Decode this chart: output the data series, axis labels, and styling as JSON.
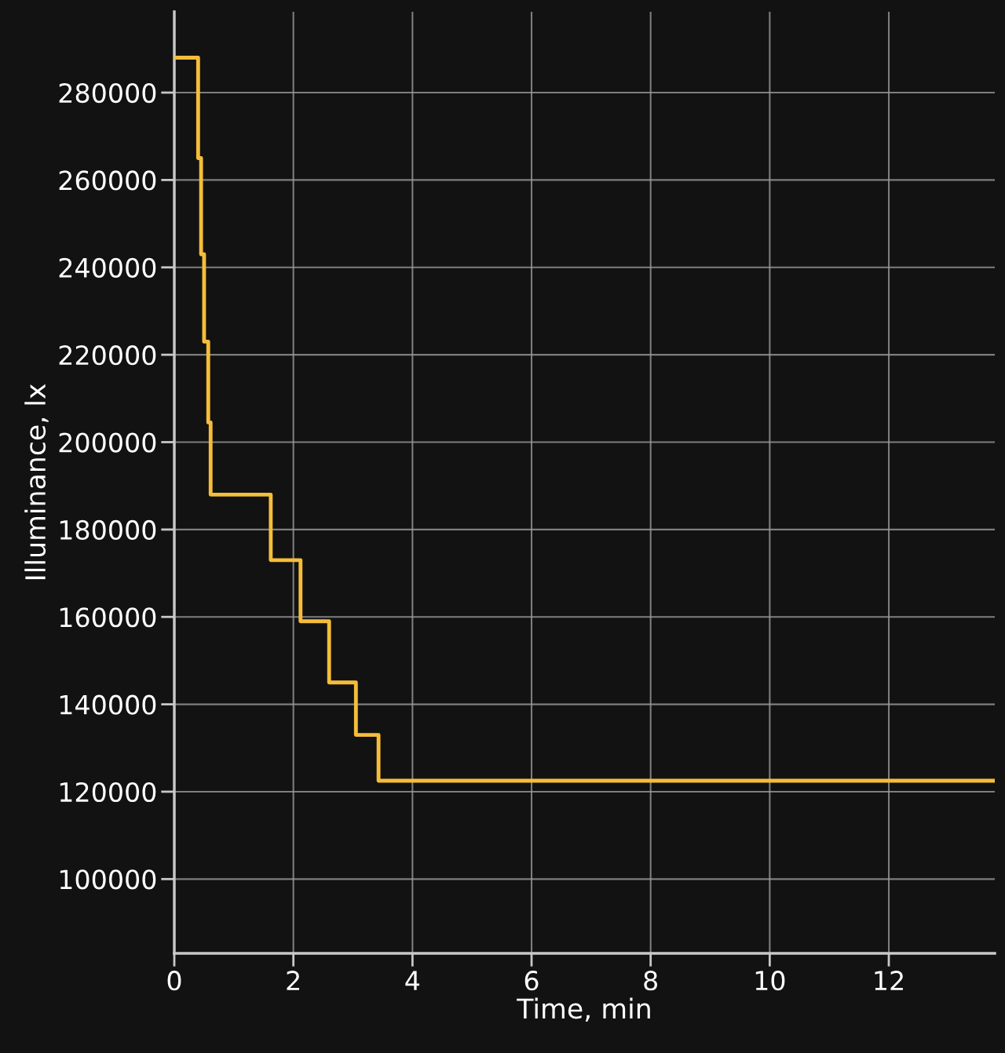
{
  "chart_data": {
    "type": "step",
    "xlabel": "Time, min",
    "ylabel": "Illuminance, lx",
    "x": [
      0,
      0.4,
      0.45,
      0.5,
      0.57,
      0.61,
      1.62,
      2.12,
      2.6,
      3.05,
      3.43,
      13.78
    ],
    "series": [
      {
        "color": "#f5bd3a",
        "values": [
          288000,
          265000,
          243000,
          223000,
          204500,
          188000,
          173000,
          159000,
          145000,
          133000,
          122500,
          122500
        ]
      }
    ],
    "xlim": [
      0,
      13.78
    ],
    "ylim": [
      83000,
      298500
    ],
    "xticks": [
      0,
      2,
      4,
      6,
      8,
      10,
      12
    ],
    "yticks": [
      100000,
      120000,
      140000,
      160000,
      180000,
      200000,
      220000,
      240000,
      260000,
      280000
    ],
    "grid": true,
    "marker": "none",
    "line_style": "solid"
  }
}
